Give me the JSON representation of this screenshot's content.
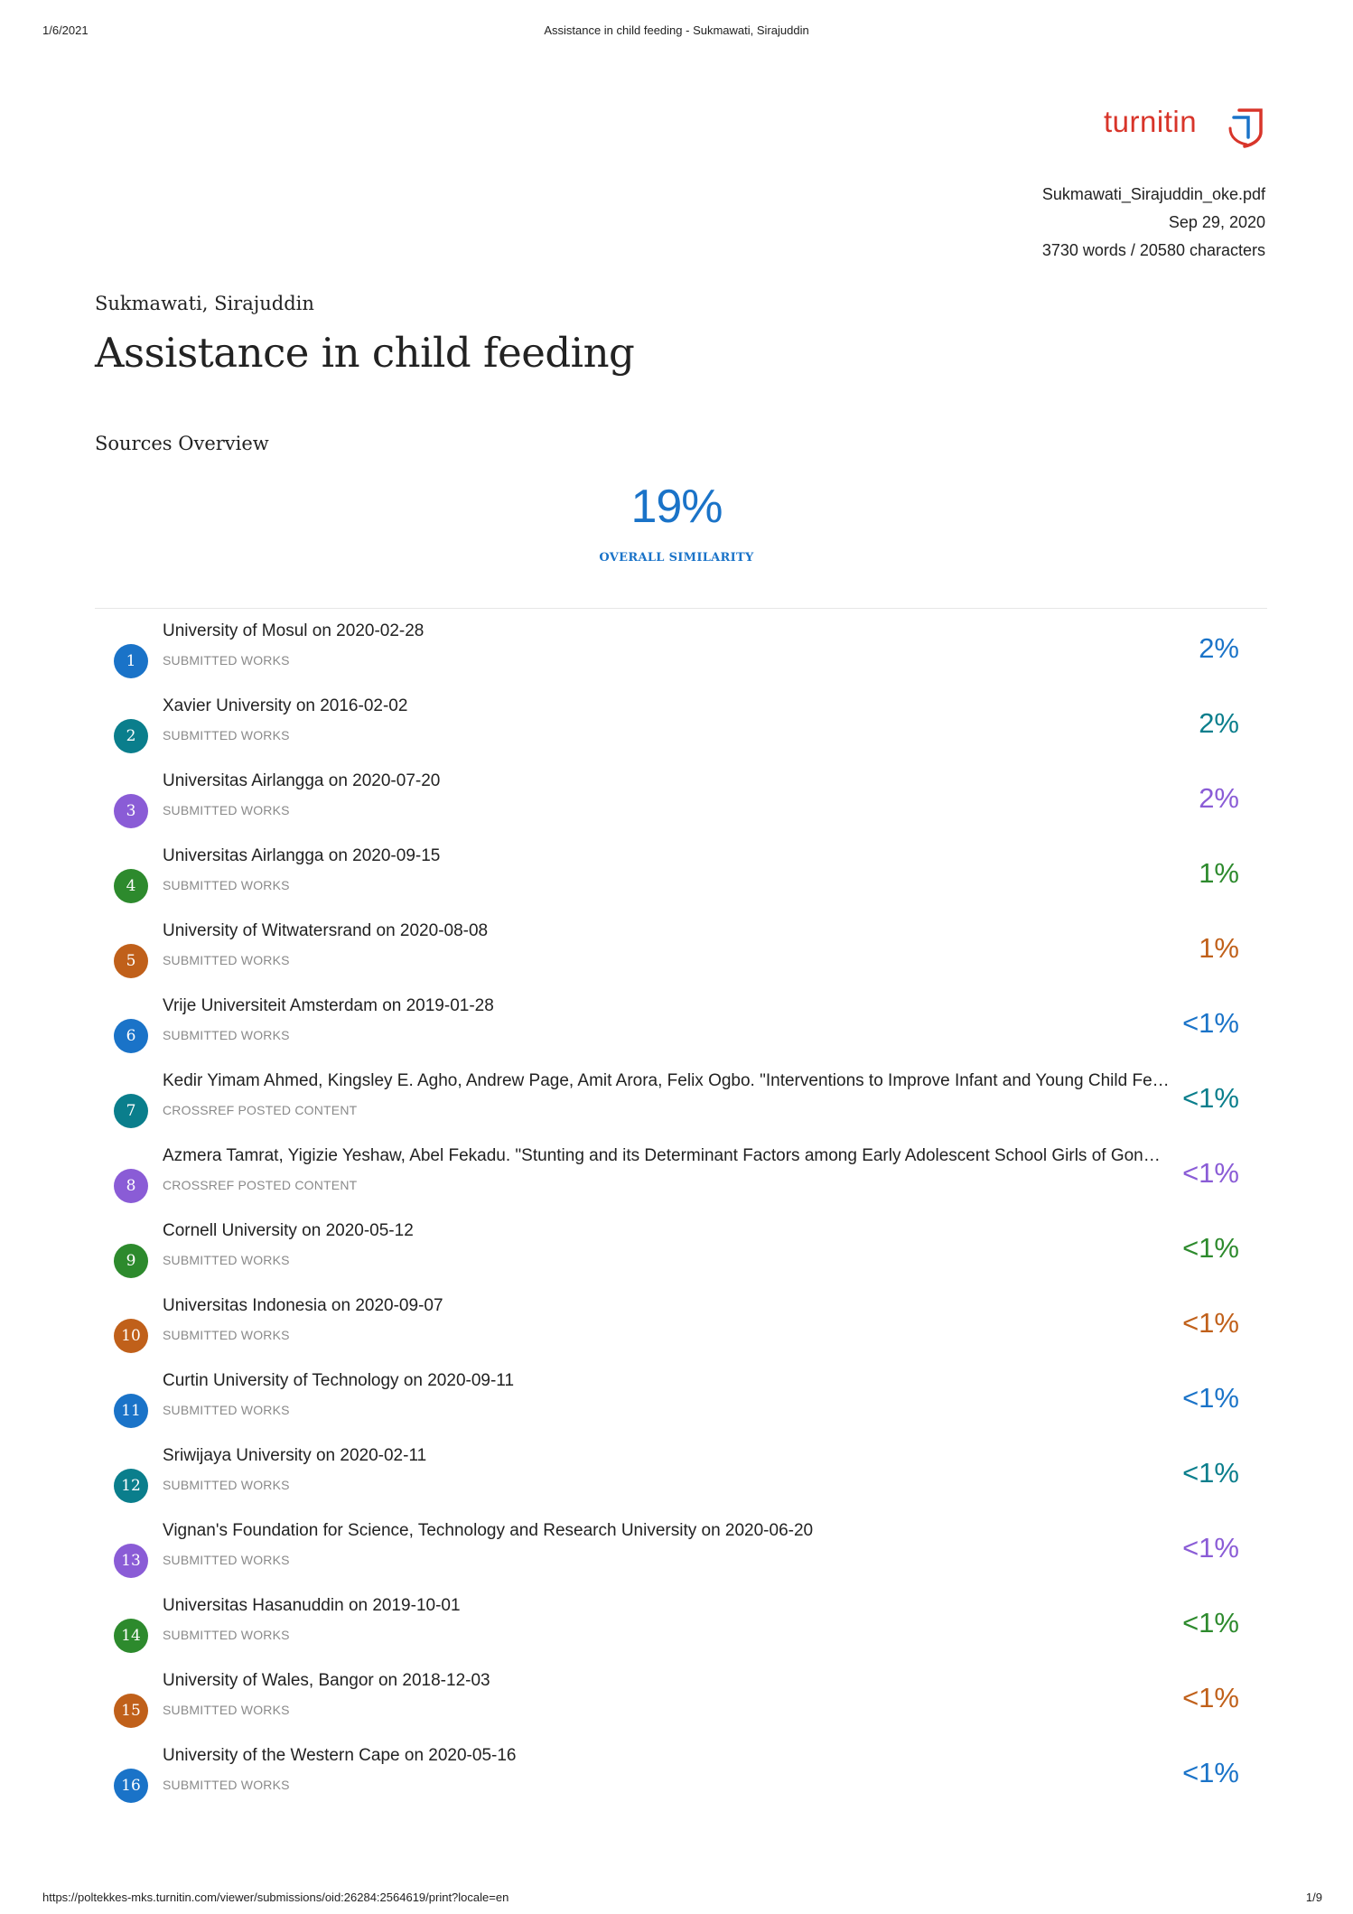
{
  "print_header": {
    "date": "1/6/2021",
    "page_title": "Assistance in child feeding - Sukmawati, Sirajuddin"
  },
  "print_footer": {
    "url": "https://poltekkes-mks.turnitin.com/viewer/submissions/oid:26284:2564619/print?locale=en",
    "page": "1/9"
  },
  "logo": {
    "text": "turnitin",
    "icon": "turnitin-logo-icon",
    "brand_color": "#d8352a"
  },
  "document": {
    "filename": "Sukmawati_Sirajuddin_oke.pdf",
    "date": "Sep 29, 2020",
    "counts": "3730 words / 20580 characters",
    "author": "Sukmawati, Sirajuddin",
    "title": "Assistance in child feeding"
  },
  "overview": {
    "heading": "Sources Overview",
    "overall_percent": "19%",
    "overall_label": "OVERALL SIMILARITY",
    "accent_color": "#1a73c8"
  },
  "colors": {
    "blue": "#1a73c8",
    "teal": "#0a7e8c",
    "purple": "#8a5cd6",
    "green": "#2d8a2d",
    "orange": "#c0601a"
  },
  "sources": [
    {
      "num": "1",
      "title": "University of Mosul on 2020-02-28",
      "type": "SUBMITTED WORKS",
      "percent": "2%",
      "color": "#1a73c8"
    },
    {
      "num": "2",
      "title": "Xavier University on 2016-02-02",
      "type": "SUBMITTED WORKS",
      "percent": "2%",
      "color": "#0a7e8c"
    },
    {
      "num": "3",
      "title": "Universitas Airlangga on 2020-07-20",
      "type": "SUBMITTED WORKS",
      "percent": "2%",
      "color": "#8a5cd6"
    },
    {
      "num": "4",
      "title": "Universitas Airlangga on 2020-09-15",
      "type": "SUBMITTED WORKS",
      "percent": "1%",
      "color": "#2d8a2d"
    },
    {
      "num": "5",
      "title": "University of Witwatersrand on 2020-08-08",
      "type": "SUBMITTED WORKS",
      "percent": "1%",
      "color": "#c0601a"
    },
    {
      "num": "6",
      "title": "Vrije Universiteit Amsterdam on 2019-01-28",
      "type": "SUBMITTED WORKS",
      "percent": "<1%",
      "color": "#1a73c8"
    },
    {
      "num": "7",
      "title": "Kedir Yimam Ahmed, Kingsley E. Agho, Andrew Page, Amit Arora, Felix Ogbo. \"Interventions to Improve Infant and Young Child Feedin…",
      "type": "CROSSREF POSTED CONTENT",
      "percent": "<1%",
      "color": "#0a7e8c"
    },
    {
      "num": "8",
      "title": "Azmera Tamrat, Yigizie Yeshaw, Abel Fekadu. \"Stunting and its Determinant Factors among Early Adolescent School Girls of Gondar t…",
      "type": "CROSSREF POSTED CONTENT",
      "percent": "<1%",
      "color": "#8a5cd6"
    },
    {
      "num": "9",
      "title": "Cornell University on 2020-05-12",
      "type": "SUBMITTED WORKS",
      "percent": "<1%",
      "color": "#2d8a2d"
    },
    {
      "num": "10",
      "title": "Universitas Indonesia on 2020-09-07",
      "type": "SUBMITTED WORKS",
      "percent": "<1%",
      "color": "#c0601a"
    },
    {
      "num": "11",
      "title": "Curtin University of Technology on 2020-09-11",
      "type": "SUBMITTED WORKS",
      "percent": "<1%",
      "color": "#1a73c8"
    },
    {
      "num": "12",
      "title": "Sriwijaya University on 2020-02-11",
      "type": "SUBMITTED WORKS",
      "percent": "<1%",
      "color": "#0a7e8c"
    },
    {
      "num": "13",
      "title": "Vignan's Foundation for Science, Technology and Research University on 2020-06-20",
      "type": "SUBMITTED WORKS",
      "percent": "<1%",
      "color": "#8a5cd6"
    },
    {
      "num": "14",
      "title": "Universitas Hasanuddin on 2019-10-01",
      "type": "SUBMITTED WORKS",
      "percent": "<1%",
      "color": "#2d8a2d"
    },
    {
      "num": "15",
      "title": "University of Wales, Bangor on 2018-12-03",
      "type": "SUBMITTED WORKS",
      "percent": "<1%",
      "color": "#c0601a"
    },
    {
      "num": "16",
      "title": "University of the Western Cape on 2020-05-16",
      "type": "SUBMITTED WORKS",
      "percent": "<1%",
      "color": "#1a73c8"
    }
  ]
}
